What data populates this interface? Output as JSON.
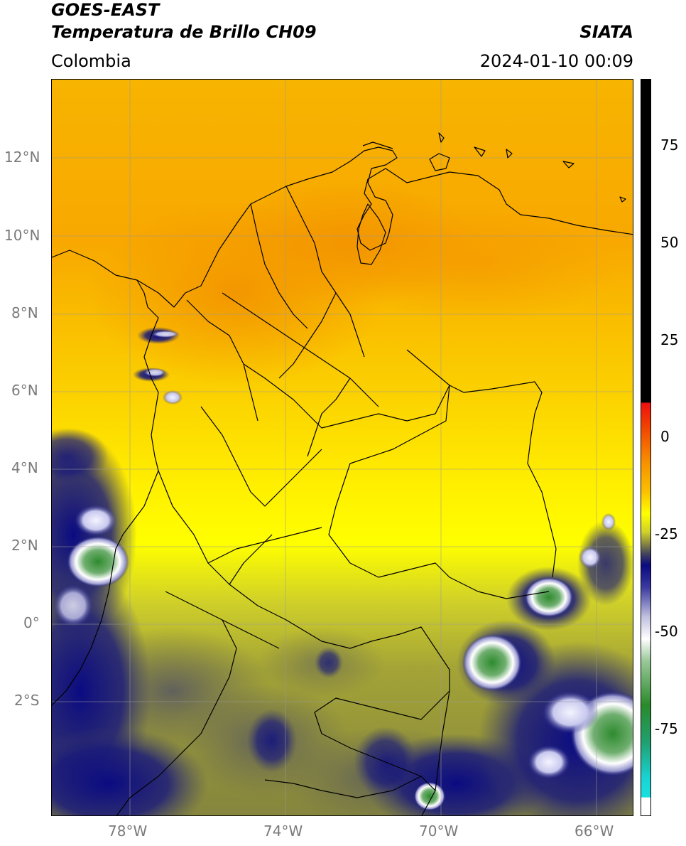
{
  "header": {
    "satellite": "GOES-EAST",
    "product": "Temperatura de Brillo CH09",
    "region": "Colombia",
    "source": "SIATA",
    "datetime": "2024-01-10 00:09"
  },
  "axes": {
    "lat_labels": [
      "12°N",
      "10°N",
      "8°N",
      "6°N",
      "4°N",
      "2°N",
      "0°",
      "2°S"
    ],
    "lon_labels": [
      "78°W",
      "74°W",
      "70°W",
      "66°W"
    ]
  },
  "colorbar": {
    "tick_labels": [
      "75",
      "50",
      "25",
      "0",
      "-25",
      "-50",
      "-75"
    ],
    "colors": {
      "warm_max": "#000000",
      "red": "#e8201a",
      "orange": "#f7a300",
      "yellow": "#ffff00",
      "olive": "#8c8c3a",
      "navy": "#0a0a80",
      "white": "#ffffff",
      "green": "#2a8a2a",
      "cyan": "#19d4d4"
    }
  }
}
